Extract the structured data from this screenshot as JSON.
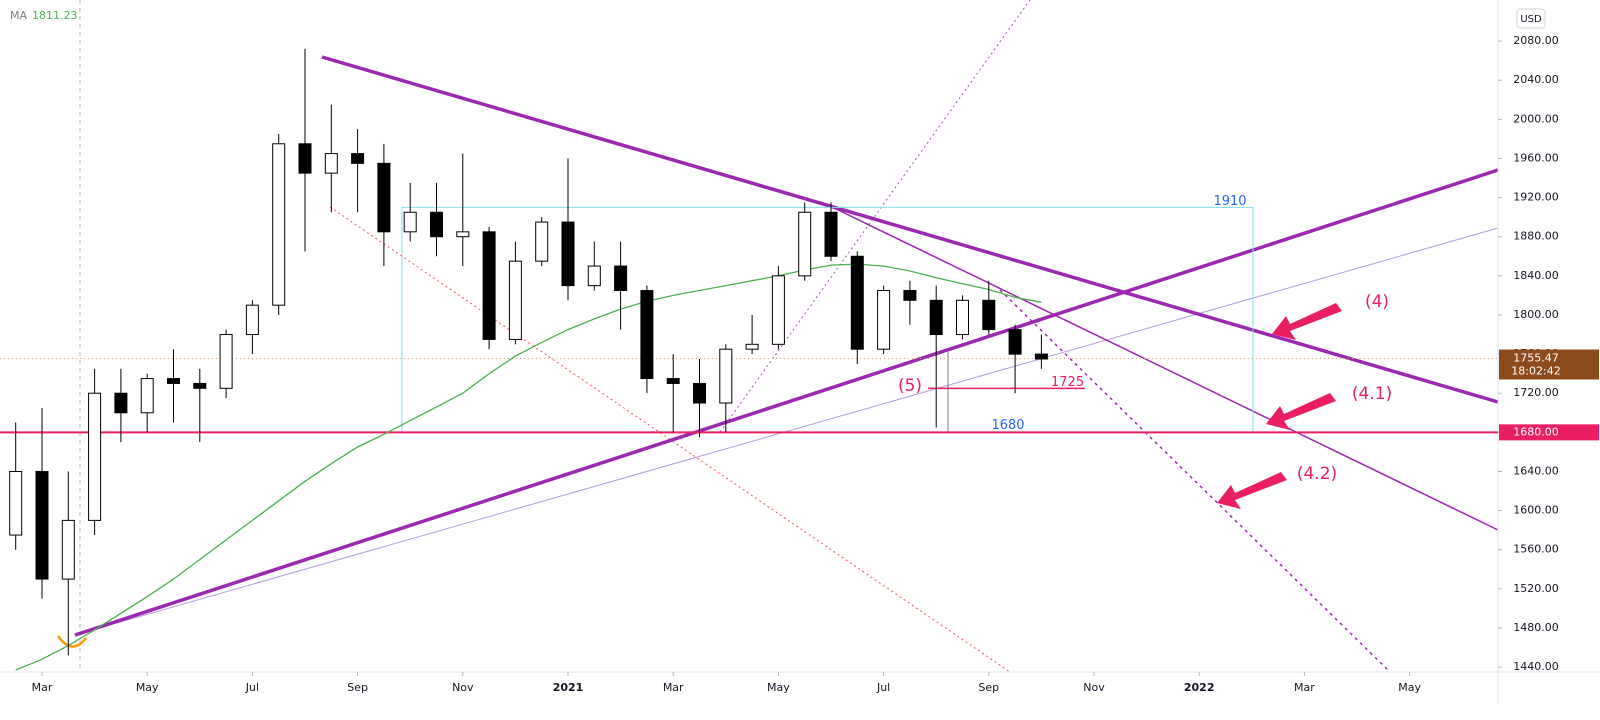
{
  "chart_data": {
    "type": "candlestick",
    "categories": [
      null,
      "Mar",
      null,
      null,
      null,
      "May",
      null,
      null,
      null,
      "Jul",
      null,
      null,
      null,
      "Sep",
      null,
      null,
      null,
      "Nov",
      null,
      null,
      null,
      "2021",
      null,
      null,
      null,
      "Mar",
      null,
      null,
      null,
      "May",
      null,
      null,
      null,
      "Jul",
      null,
      null,
      null,
      "Sep",
      null,
      null,
      null,
      "Nov",
      null,
      null,
      null,
      "2022",
      null,
      null,
      null,
      "Mar",
      null,
      null,
      null,
      "May",
      null,
      null,
      null
    ],
    "open": [
      1575,
      1640,
      1530,
      1590,
      1720,
      1700,
      1735,
      1730,
      1725,
      1780,
      1810,
      1975,
      1945,
      1965,
      1955,
      1885,
      1905,
      1880,
      1885,
      1775,
      1855,
      1895,
      1830,
      1850,
      1825,
      1735,
      1730,
      1710,
      1765,
      1770,
      1840,
      1905,
      1860,
      1765,
      1825,
      1815,
      1780,
      1815,
      1785,
      1760,
      null,
      null,
      null,
      null,
      null,
      null,
      null,
      null,
      null,
      null,
      null,
      null,
      null,
      null,
      null,
      null,
      null
    ],
    "high": [
      1690,
      1705,
      1640,
      1745,
      1745,
      1740,
      1765,
      1745,
      1785,
      1815,
      1985,
      2072,
      2015,
      1990,
      1975,
      1935,
      1935,
      1965,
      1890,
      1875,
      1900,
      1960,
      1875,
      1875,
      1830,
      1760,
      1755,
      1770,
      1800,
      1850,
      1915,
      1915,
      1865,
      1830,
      1835,
      1830,
      1820,
      1835,
      1790,
      1780,
      null,
      null,
      null,
      null,
      null,
      null,
      null,
      null,
      null,
      null,
      null,
      null,
      null,
      null,
      null,
      null,
      null
    ],
    "low": [
      1560,
      1510,
      1452,
      1575,
      1670,
      1680,
      1690,
      1670,
      1715,
      1760,
      1800,
      1865,
      1905,
      1905,
      1850,
      1875,
      1860,
      1850,
      1765,
      1770,
      1850,
      1815,
      1825,
      1785,
      1720,
      1680,
      1675,
      1680,
      1760,
      1765,
      1835,
      1855,
      1750,
      1760,
      1790,
      1685,
      1775,
      1780,
      1720,
      1745,
      null,
      null,
      null,
      null,
      null,
      null,
      null,
      null,
      null,
      null,
      null,
      null,
      null,
      null,
      null,
      null,
      null
    ],
    "close": [
      1640,
      1530,
      1590,
      1720,
      1700,
      1735,
      1730,
      1725,
      1780,
      1810,
      1975,
      1945,
      1965,
      1955,
      1885,
      1905,
      1880,
      1885,
      1775,
      1855,
      1895,
      1830,
      1850,
      1825,
      1735,
      1730,
      1710,
      1765,
      1770,
      1840,
      1905,
      1860,
      1765,
      1825,
      1815,
      1780,
      1815,
      1785,
      1760,
      1755,
      null,
      null,
      null,
      null,
      null,
      null,
      null,
      null,
      null,
      null,
      null,
      null,
      null,
      null,
      null,
      null,
      null
    ],
    "ma": {
      "name": "MA",
      "value": 1811.23,
      "color": "#4caf50",
      "values": [
        1437,
        1448,
        1462,
        1478,
        1495,
        1512,
        1530,
        1550,
        1570,
        1590,
        1610,
        1630,
        1648,
        1665,
        1678,
        1692,
        1706,
        1720,
        1740,
        1758,
        1772,
        1785,
        1796,
        1806,
        1814,
        1820,
        1825,
        1830,
        1835,
        1840,
        1846,
        1851,
        1852,
        1850,
        1845,
        1838,
        1832,
        1826,
        1818,
        1813,
        null,
        null,
        null,
        null,
        null,
        null,
        null,
        null,
        null,
        null,
        null,
        null,
        null,
        null,
        null,
        null,
        null
      ]
    },
    "ylim": [
      1435,
      2122
    ],
    "yticks": [
      {
        "value": 1440,
        "label": "1440.00"
      },
      {
        "value": 1480,
        "label": "1480.00"
      },
      {
        "value": 1520,
        "label": "1520.00"
      },
      {
        "value": 1560,
        "label": "1560.00"
      },
      {
        "value": 1600,
        "label": "1600.00"
      },
      {
        "value": 1640,
        "label": "1640.00"
      },
      {
        "value": 1680,
        "label": "1680.00"
      },
      {
        "value": 1720,
        "label": "1720.00"
      },
      {
        "value": 1760,
        "label": "1760.00"
      },
      {
        "value": 1800,
        "label": "1800.00"
      },
      {
        "value": 1840,
        "label": "1840.00"
      },
      {
        "value": 1880,
        "label": "1880.00"
      },
      {
        "value": 1920,
        "label": "1920.00"
      },
      {
        "value": 1960,
        "label": "1960.00"
      },
      {
        "value": 2000,
        "label": "2000.00"
      },
      {
        "value": 2040,
        "label": "2040.00"
      },
      {
        "value": 2080,
        "label": "2080.00"
      }
    ],
    "currency": "USD",
    "last_price": {
      "value": 1755.47,
      "countdown": "18:02:42"
    },
    "level_line": {
      "value": 1680,
      "label": "1680.00",
      "color": "#e91e63"
    },
    "box": {
      "top": 1910,
      "bottom": 1680,
      "color": "#80deea"
    },
    "support": {
      "value": 1725,
      "color": "#e91e63"
    },
    "annotations": [
      "(5)",
      "(4)",
      "(4.1)",
      "(4.2)"
    ]
  }
}
